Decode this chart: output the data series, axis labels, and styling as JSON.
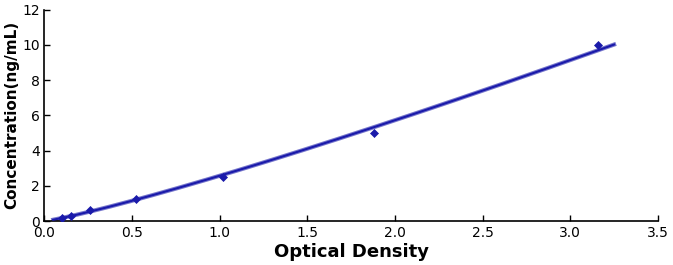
{
  "x_data": [
    0.1,
    0.15,
    0.26,
    0.52,
    1.02,
    1.88,
    3.16
  ],
  "y_data": [
    0.156,
    0.312,
    0.625,
    1.25,
    2.5,
    5.0,
    10.0
  ],
  "xlabel": "Optical Density",
  "ylabel": "Concentration(ng/mL)",
  "xlim": [
    0,
    3.5
  ],
  "ylim": [
    0,
    12
  ],
  "xticks": [
    0,
    0.5,
    1.0,
    1.5,
    2.0,
    2.5,
    3.0,
    3.5
  ],
  "yticks": [
    0,
    2,
    4,
    6,
    8,
    10,
    12
  ],
  "line_color": "#1a1aaa",
  "line_color2": "#7777cc",
  "marker": "D",
  "marker_size": 4.5,
  "line_width": 1.5,
  "xlabel_fontsize": 13,
  "ylabel_fontsize": 11,
  "tick_fontsize": 10,
  "fig_width": 6.73,
  "fig_height": 2.65,
  "background_color": "#ffffff"
}
